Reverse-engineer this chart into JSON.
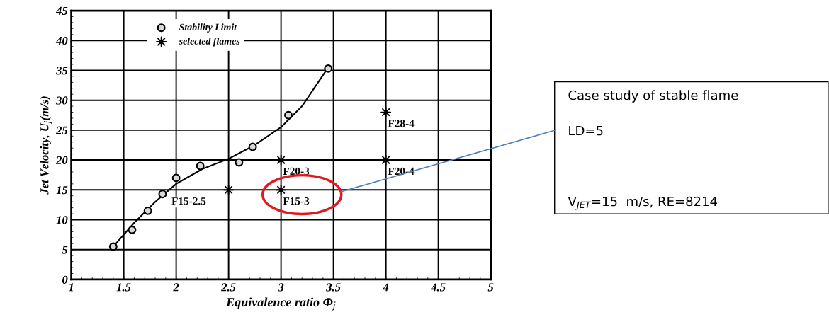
{
  "chart_data": {
    "type": "scatter",
    "xlabel": "Equivalence ratio Φ$_{j}$",
    "ylabel": "Jet Velocity, U$_{j}$(m/s)",
    "xlim": [
      1,
      5
    ],
    "ylim": [
      0,
      45
    ],
    "xticks": [
      1,
      1.5,
      2,
      2.5,
      3,
      3.5,
      4,
      4.5,
      5
    ],
    "yticks": [
      0,
      5,
      10,
      15,
      20,
      25,
      30,
      35,
      40,
      45
    ],
    "grid": true,
    "legend": "top left",
    "series": [
      {
        "name": "Stability Limit",
        "marker": "circle",
        "color": "#000000",
        "x": [
          1.4,
          1.58,
          1.73,
          1.87,
          2.0,
          2.23,
          2.6,
          2.73,
          3.07,
          3.45
        ],
        "values": [
          5.5,
          8.3,
          11.5,
          14.3,
          17,
          19,
          19.6,
          22.2,
          27.5,
          35.3
        ]
      },
      {
        "name": "selected flames",
        "type": "scatter",
        "marker": "star",
        "color": "#000000",
        "x": [
          2.5,
          3,
          3,
          4,
          4
        ],
        "values": [
          15,
          15,
          20,
          20,
          28
        ]
      },
      {
        "type": "line",
        "color": "#000000",
        "line_style": "solid",
        "x": [
          1.4,
          1.6,
          1.8,
          2.0,
          2.25,
          2.5,
          2.75,
          3.0,
          3.2,
          3.45
        ],
        "values": [
          5.5,
          9.5,
          13,
          16,
          18.5,
          20.2,
          22.5,
          25.5,
          29,
          35.5
        ]
      }
    ],
    "annotations": [
      {
        "text": "F15-2.5",
        "x": 2.5,
        "y": 15
      },
      {
        "text": "F15-3",
        "x": 3,
        "y": 15
      },
      {
        "text": "F20-3",
        "x": 3,
        "y": 20
      },
      {
        "text": "F20-4",
        "x": 4,
        "y": 20
      },
      {
        "text": "F28-4",
        "x": 4,
        "y": 28
      },
      "Case study of stable flame",
      "LD=5",
      "V$_{JET}$=15  m/s, RE=8214"
    ]
  }
}
